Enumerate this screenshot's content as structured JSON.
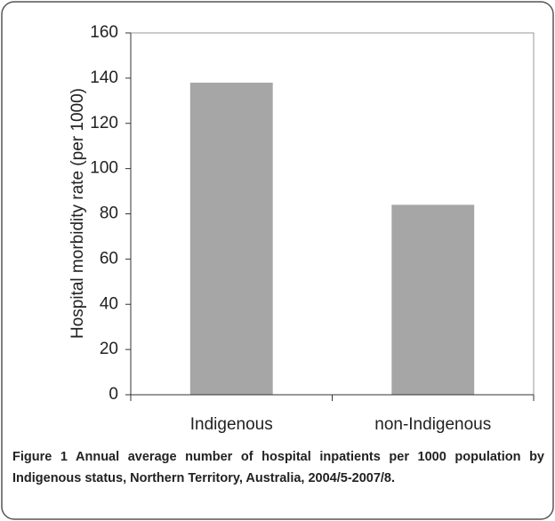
{
  "chart_data": {
    "type": "bar",
    "y_label": "Hospital morbidity rate (per 1000)",
    "categories": [
      "Indigenous",
      "non-Indigenous"
    ],
    "values": [
      138,
      84
    ],
    "color": "#a6a6a6",
    "ylim": [
      0,
      160
    ],
    "yticks": [
      0,
      20,
      40,
      60,
      80,
      100,
      120,
      140,
      160
    ],
    "grid": false,
    "caption_label": "Figure 1",
    "caption": "Annual average number of hospital inpatients per 1000 population by Indigenous status, Northern Territory, Australia, 2004/5-2007/8."
  }
}
